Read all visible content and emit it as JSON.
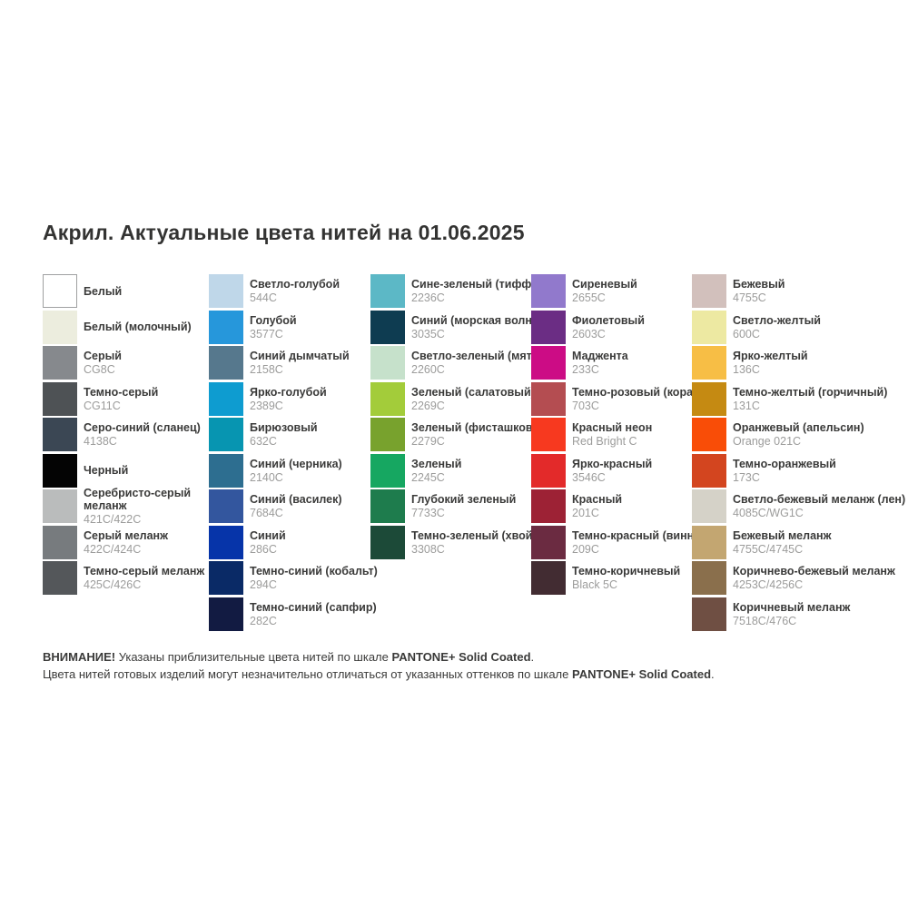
{
  "title": "Акрил. Актуальные цвета нитей на 01.06.2025",
  "columns": [
    {
      "items": [
        {
          "name": "Белый",
          "code": "",
          "color": "#FFFFFF",
          "bordered": true
        },
        {
          "name": "Белый (молочный)",
          "code": "",
          "color": "#ECEDDE"
        },
        {
          "name": "Серый",
          "code": "CG8C",
          "color": "#86898D"
        },
        {
          "name": "Темно-серый",
          "code": "CG11C",
          "color": "#4E5255"
        },
        {
          "name": "Серо-синий (сланец)",
          "code": "4138C",
          "color": "#3B4754"
        },
        {
          "name": "Черный",
          "code": "",
          "color": "#040404"
        },
        {
          "name": "Серебристо-серый\nмеланж",
          "code": "421C/422C",
          "color": "#BABCBC"
        },
        {
          "name": "Серый меланж",
          "code": "422C/424C",
          "color": "#777B7E"
        },
        {
          "name": "Темно-серый меланж",
          "code": "425C/426C",
          "color": "#54575A"
        }
      ]
    },
    {
      "items": [
        {
          "name": "Светло-голубой",
          "code": "544C",
          "color": "#BFD7E9"
        },
        {
          "name": "Голубой",
          "code": "3577C",
          "color": "#2697DB"
        },
        {
          "name": "Синий дымчатый",
          "code": "2158C",
          "color": "#56788D"
        },
        {
          "name": "Ярко-голубой",
          "code": "2389C",
          "color": "#0E9CD0"
        },
        {
          "name": "Бирюзовый",
          "code": "632C",
          "color": "#0795B1"
        },
        {
          "name": "Синий (черника)",
          "code": "2140C",
          "color": "#2D6E90"
        },
        {
          "name": "Синий (василек)",
          "code": "7684C",
          "color": "#33569E"
        },
        {
          "name": "Синий",
          "code": "286C",
          "color": "#0634A9"
        },
        {
          "name": "Темно-синий (кобальт)",
          "code": "294C",
          "color": "#0A2A66"
        },
        {
          "name": "Темно-синий (сапфир)",
          "code": "282C",
          "color": "#121B42"
        }
      ]
    },
    {
      "items": [
        {
          "name": "Сине-зеленый (тиффани)",
          "code": "2236C",
          "color": "#5CB8C6"
        },
        {
          "name": "Синий (морская волна)",
          "code": "3035C",
          "color": "#0E3C51"
        },
        {
          "name": "Светло-зеленый (мята)",
          "code": "2260C",
          "color": "#C6E1CB"
        },
        {
          "name": "Зеленый (салатовый)",
          "code": "2269C",
          "color": "#A3CC3A"
        },
        {
          "name": "Зеленый (фисташковый)",
          "code": "2279C",
          "color": "#78A22D"
        },
        {
          "name": "Зеленый",
          "code": "2245C",
          "color": "#16A761"
        },
        {
          "name": "Глубокий зеленый",
          "code": "7733C",
          "color": "#1E7C4D"
        },
        {
          "name": "Темно-зеленый (хвойный)",
          "code": "3308C",
          "color": "#1C4A38"
        }
      ]
    },
    {
      "items": [
        {
          "name": "Сиреневый",
          "code": "2655C",
          "color": "#9179CC"
        },
        {
          "name": "Фиолетовый",
          "code": "2603C",
          "color": "#6B2D84"
        },
        {
          "name": "Маджента",
          "code": "233C",
          "color": "#CC0C85"
        },
        {
          "name": "Темно-розовый (коралл)",
          "code": "703C",
          "color": "#B44D51"
        },
        {
          "name": "Красный неон",
          "code": "Red Bright C",
          "color": "#F7391F"
        },
        {
          "name": "Ярко-красный",
          "code": "3546C",
          "color": "#E32A2A"
        },
        {
          "name": "Красный",
          "code": "201C",
          "color": "#9D2235"
        },
        {
          "name": "Темно-красный (винный)",
          "code": "209C",
          "color": "#6B2B41"
        },
        {
          "name": "Темно-коричневый",
          "code": "Black 5C",
          "color": "#422C32"
        }
      ]
    },
    {
      "items": [
        {
          "name": "Бежевый",
          "code": "4755C",
          "color": "#D2C0BC"
        },
        {
          "name": "Светло-желтый",
          "code": "600C",
          "color": "#EDE9A2"
        },
        {
          "name": "Ярко-желтый",
          "code": "136C",
          "color": "#F7BE45"
        },
        {
          "name": "Темно-желтый (горчичный)",
          "code": "131C",
          "color": "#C58A12"
        },
        {
          "name": "Оранжевый (апельсин)",
          "code": "Orange 021C",
          "color": "#F94D07"
        },
        {
          "name": "Темно-оранжевый",
          "code": "173C",
          "color": "#D3451F"
        },
        {
          "name": "Светло-бежевый меланж (лен)",
          "code": "4085C/WG1C",
          "color": "#D5D2C8"
        },
        {
          "name": "Бежевый меланж",
          "code": "4755C/4745C",
          "color": "#C3A671"
        },
        {
          "name": "Коричнево-бежевый меланж",
          "code": "4253C/4256C",
          "color": "#8A6F4C"
        },
        {
          "name": "Коричневый меланж",
          "code": "7518C/476C",
          "color": "#6F4F43"
        }
      ]
    }
  ],
  "notice": {
    "line1": [
      {
        "text": "ВНИМАНИЕ!",
        "bold": true
      },
      {
        "text": " Указаны приблизительные цвета нитей по шкале ",
        "bold": false
      },
      {
        "text": "PANTONE+ Solid Coated",
        "bold": true
      },
      {
        "text": ".",
        "bold": false
      }
    ],
    "line2": [
      {
        "text": "Цвета нитей готовых изделий могут незначительно отличаться от указанных оттенков по шкале ",
        "bold": false
      },
      {
        "text": "PANTONE+ Solid Coated",
        "bold": true
      },
      {
        "text": ".",
        "bold": false
      }
    ]
  }
}
